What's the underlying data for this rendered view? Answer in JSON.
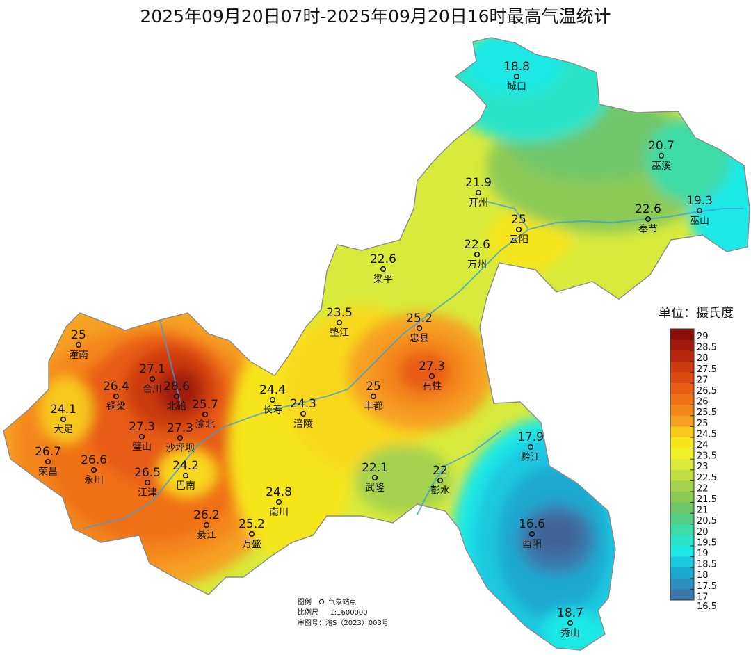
{
  "title": "2025年09月20日07时-2025年09月20日16时最高气温统计",
  "unit_label": "单位：摄氏度",
  "legend": {
    "values": [
      "29",
      "28.5",
      "28",
      "27.5",
      "27",
      "26.5",
      "26",
      "25.5",
      "25",
      "24.5",
      "24",
      "23.5",
      "23",
      "22.5",
      "22",
      "21.5",
      "21",
      "20.5",
      "20",
      "19.5",
      "19",
      "18.5",
      "18",
      "17.5",
      "17",
      "16.5"
    ],
    "colors": [
      "#8b0f0a",
      "#a11a0e",
      "#b8280f",
      "#cc3a10",
      "#dc4a12",
      "#e85c14",
      "#f07018",
      "#f4871c",
      "#f6a024",
      "#f8c81a",
      "#f7e51c",
      "#eef028",
      "#d9ea3c",
      "#c0dd40",
      "#a5d24e",
      "#8cca56",
      "#6fc66a",
      "#55cf86",
      "#3ddba6",
      "#2ae4c8",
      "#1ee8e6",
      "#1bc8e0",
      "#1aa8d0",
      "#2a8fc0",
      "#3a78ac",
      "#3f6496"
    ]
  },
  "stations": [
    {
      "name": "城口",
      "value": "18.8"
    },
    {
      "name": "巫溪",
      "value": "20.7"
    },
    {
      "name": "开州",
      "value": "21.9"
    },
    {
      "name": "巫山",
      "value": "19.3"
    },
    {
      "name": "奉节",
      "value": "22.6"
    },
    {
      "name": "云阳",
      "value": "25"
    },
    {
      "name": "万州",
      "value": "22.6"
    },
    {
      "name": "梁平",
      "value": "22.6"
    },
    {
      "name": "垫江",
      "value": "23.5"
    },
    {
      "name": "忠县",
      "value": "25.2"
    },
    {
      "name": "石柱",
      "value": "27.3"
    },
    {
      "name": "丰都",
      "value": "25"
    },
    {
      "name": "长寿",
      "value": "24.4"
    },
    {
      "name": "涪陵",
      "value": "24.3"
    },
    {
      "name": "潼南",
      "value": "25"
    },
    {
      "name": "合川",
      "value": "27.1"
    },
    {
      "name": "铜梁",
      "value": "26.4"
    },
    {
      "name": "北碚",
      "value": "28.6"
    },
    {
      "name": "渝北",
      "value": "25.7"
    },
    {
      "name": "大足",
      "value": "24.1"
    },
    {
      "name": "璧山",
      "value": "27.3"
    },
    {
      "name": "沙坪坝",
      "value": "27.3"
    },
    {
      "name": "荣昌",
      "value": "26.7"
    },
    {
      "name": "永川",
      "value": "26.6"
    },
    {
      "name": "巴南",
      "value": "24.2"
    },
    {
      "name": "江津",
      "value": "26.5"
    },
    {
      "name": "綦江",
      "value": "26.2"
    },
    {
      "name": "南川",
      "value": "24.8"
    },
    {
      "name": "万盛",
      "value": "25.2"
    },
    {
      "name": "武隆",
      "value": "22.1"
    },
    {
      "name": "彭水",
      "value": "22"
    },
    {
      "name": "黔江",
      "value": "17.9"
    },
    {
      "name": "酉阳",
      "value": "16.6"
    },
    {
      "name": "秀山",
      "value": "18.7"
    }
  ],
  "footer": {
    "legend_label": "图例",
    "legend_item": "气象站点",
    "scale_label": "比例尺",
    "scale_value": "1:1600000",
    "approval_label": "审图号：渝S（2023）003号"
  }
}
